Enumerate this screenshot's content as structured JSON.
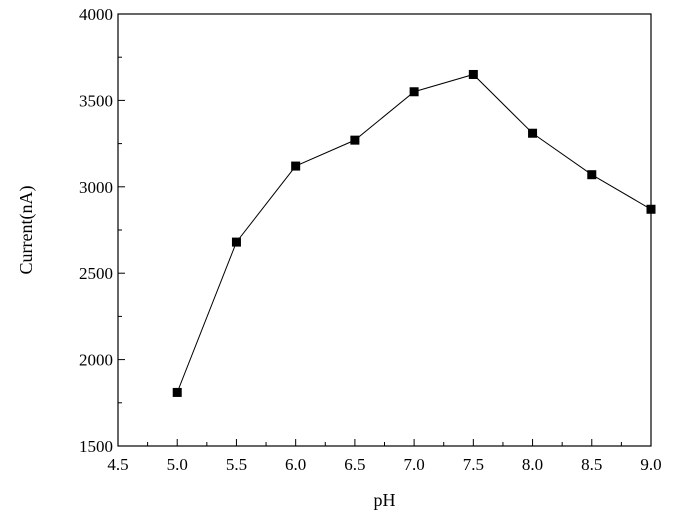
{
  "chart_data": {
    "type": "line",
    "xlabel": "pH",
    "ylabel": "Current(nA)",
    "xlim": [
      4.5,
      9.0
    ],
    "ylim": [
      1500,
      4000
    ],
    "x_ticks": [
      4.5,
      5.0,
      5.5,
      6.0,
      6.5,
      7.0,
      7.5,
      8.0,
      8.5,
      9.0
    ],
    "x_tick_labels": [
      "4.5",
      "5.0",
      "5.5",
      "6.0",
      "6.5",
      "7.0",
      "7.5",
      "8.0",
      "8.5",
      "9.0"
    ],
    "y_ticks": [
      1500,
      2000,
      2500,
      3000,
      3500,
      4000
    ],
    "y_tick_labels": [
      "1500",
      "2000",
      "2500",
      "3000",
      "3500",
      "4000"
    ],
    "grid": false,
    "marker": "square",
    "line_color": "#000000",
    "series": [
      {
        "x": [
          5.0,
          5.5,
          6.0,
          6.5,
          7.0,
          7.5,
          8.0,
          8.5,
          9.0
        ],
        "y": [
          1810,
          2680,
          3120,
          3270,
          3550,
          3650,
          3310,
          3070,
          2870
        ]
      }
    ]
  }
}
